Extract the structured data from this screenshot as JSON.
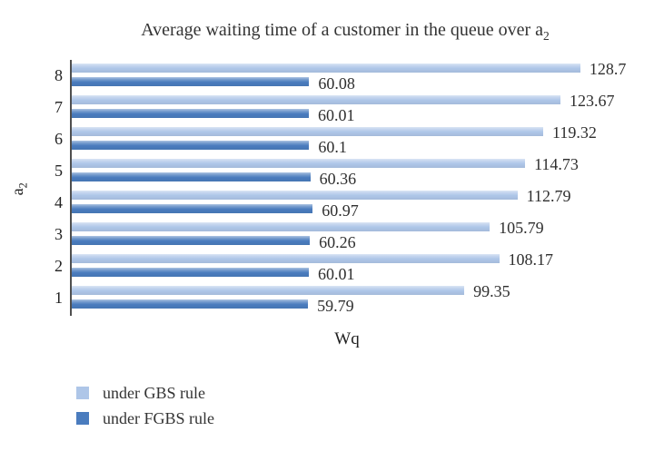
{
  "chart_data": {
    "type": "bar",
    "orientation": "horizontal",
    "title": "Average waiting time of a customer in the queue over a",
    "title_sub": "2",
    "xlabel": "Wq",
    "ylabel": "a",
    "ylabel_sub": "2",
    "categories": [
      "8",
      "7",
      "6",
      "5",
      "4",
      "3",
      "2",
      "1"
    ],
    "series": [
      {
        "name": "under GBS rule",
        "key": "gbs",
        "color": "#aec6e8",
        "values": [
          128.7,
          123.67,
          119.32,
          114.73,
          112.79,
          105.79,
          108.17,
          99.35
        ],
        "labels": [
          "128.7",
          "123.67",
          "119.32",
          "114.73",
          "112.79",
          "105.79",
          "108.17",
          "99.35"
        ]
      },
      {
        "name": "under FGBS rule",
        "key": "fgbs",
        "color": "#4a7cbe",
        "values": [
          60.08,
          60.01,
          60.1,
          60.36,
          60.97,
          60.26,
          60.01,
          59.79
        ],
        "labels": [
          "60.08",
          "60.01",
          "60.1",
          "60.36",
          "60.97",
          "60.26",
          "60.01",
          "59.79"
        ]
      }
    ],
    "xlim": [
      0,
      140
    ],
    "grid": false,
    "value_labels": true,
    "legend_position": "bottom-left",
    "axis_color": "#4f4f4f"
  }
}
